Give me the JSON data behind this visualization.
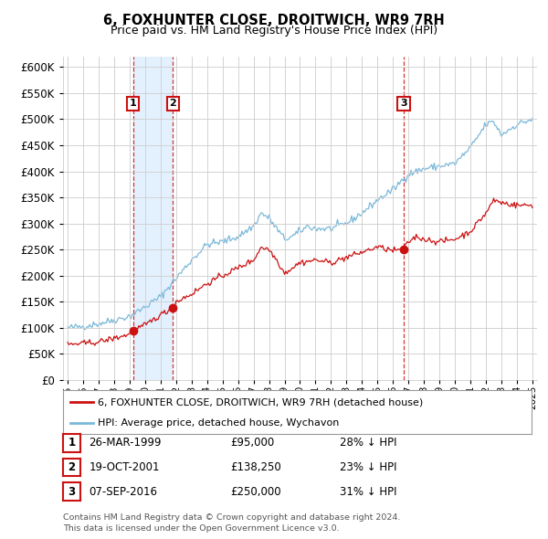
{
  "title": "6, FOXHUNTER CLOSE, DROITWICH, WR9 7RH",
  "subtitle": "Price paid vs. HM Land Registry's House Price Index (HPI)",
  "hpi_color": "#7ab8d9",
  "price_color": "#cc1111",
  "dashed_color": "#cc1111",
  "shade_color": "#ddeeff",
  "background_color": "#ffffff",
  "grid_color": "#cccccc",
  "ylim": [
    0,
    620000
  ],
  "yticks": [
    0,
    50000,
    100000,
    150000,
    200000,
    250000,
    300000,
    350000,
    400000,
    450000,
    500000,
    550000,
    600000
  ],
  "xlim_start": 1994.7,
  "xlim_end": 2025.3,
  "xticks": [
    1995,
    1996,
    1997,
    1998,
    1999,
    2000,
    2001,
    2002,
    2003,
    2004,
    2005,
    2006,
    2007,
    2008,
    2009,
    2010,
    2011,
    2012,
    2013,
    2014,
    2015,
    2016,
    2017,
    2018,
    2019,
    2020,
    2021,
    2022,
    2023,
    2024,
    2025
  ],
  "transactions": [
    {
      "label": "1",
      "date": "26-MAR-1999",
      "price": 95000,
      "pct": "28%",
      "year": 1999.23
    },
    {
      "label": "2",
      "date": "19-OCT-2001",
      "price": 138250,
      "pct": "23%",
      "year": 2001.8
    },
    {
      "label": "3",
      "date": "07-SEP-2016",
      "price": 250000,
      "pct": "31%",
      "year": 2016.69
    }
  ],
  "legend_house_label": "6, FOXHUNTER CLOSE, DROITWICH, WR9 7RH (detached house)",
  "legend_hpi_label": "HPI: Average price, detached house, Wychavon",
  "footer1": "Contains HM Land Registry data © Crown copyright and database right 2024.",
  "footer2": "This data is licensed under the Open Government Licence v3.0.",
  "hpi_anchors": [
    [
      1995.0,
      100000
    ],
    [
      1996.0,
      103000
    ],
    [
      1997.0,
      108000
    ],
    [
      1998.0,
      115000
    ],
    [
      1999.0,
      122000
    ],
    [
      2000.0,
      140000
    ],
    [
      2001.0,
      160000
    ],
    [
      2002.0,
      195000
    ],
    [
      2003.0,
      230000
    ],
    [
      2004.0,
      260000
    ],
    [
      2005.0,
      265000
    ],
    [
      2006.0,
      275000
    ],
    [
      2007.0,
      295000
    ],
    [
      2007.5,
      320000
    ],
    [
      2008.0,
      310000
    ],
    [
      2008.5,
      290000
    ],
    [
      2009.0,
      270000
    ],
    [
      2009.5,
      275000
    ],
    [
      2010.0,
      285000
    ],
    [
      2010.5,
      295000
    ],
    [
      2011.0,
      290000
    ],
    [
      2012.0,
      290000
    ],
    [
      2013.0,
      300000
    ],
    [
      2014.0,
      320000
    ],
    [
      2015.0,
      345000
    ],
    [
      2016.0,
      365000
    ],
    [
      2017.0,
      395000
    ],
    [
      2018.0,
      405000
    ],
    [
      2019.0,
      410000
    ],
    [
      2020.0,
      415000
    ],
    [
      2021.0,
      445000
    ],
    [
      2022.0,
      490000
    ],
    [
      2022.5,
      495000
    ],
    [
      2023.0,
      470000
    ],
    [
      2024.0,
      490000
    ],
    [
      2025.0,
      500000
    ]
  ],
  "price_anchors": [
    [
      1995.0,
      68000
    ],
    [
      1996.0,
      70000
    ],
    [
      1997.0,
      73000
    ],
    [
      1998.0,
      80000
    ],
    [
      1999.0,
      88000
    ],
    [
      1999.23,
      95000
    ],
    [
      2000.0,
      105000
    ],
    [
      2001.0,
      125000
    ],
    [
      2001.8,
      138250
    ],
    [
      2002.0,
      150000
    ],
    [
      2003.0,
      165000
    ],
    [
      2004.0,
      185000
    ],
    [
      2005.0,
      200000
    ],
    [
      2006.0,
      215000
    ],
    [
      2007.0,
      230000
    ],
    [
      2007.5,
      255000
    ],
    [
      2008.0,
      250000
    ],
    [
      2008.5,
      230000
    ],
    [
      2009.0,
      205000
    ],
    [
      2009.5,
      215000
    ],
    [
      2010.0,
      225000
    ],
    [
      2011.0,
      230000
    ],
    [
      2012.0,
      225000
    ],
    [
      2013.0,
      235000
    ],
    [
      2014.0,
      245000
    ],
    [
      2015.0,
      255000
    ],
    [
      2016.0,
      248000
    ],
    [
      2016.69,
      250000
    ],
    [
      2017.0,
      265000
    ],
    [
      2017.5,
      275000
    ],
    [
      2018.0,
      270000
    ],
    [
      2019.0,
      265000
    ],
    [
      2020.0,
      270000
    ],
    [
      2021.0,
      285000
    ],
    [
      2022.0,
      320000
    ],
    [
      2022.5,
      345000
    ],
    [
      2023.0,
      340000
    ],
    [
      2024.0,
      335000
    ],
    [
      2025.0,
      335000
    ]
  ]
}
